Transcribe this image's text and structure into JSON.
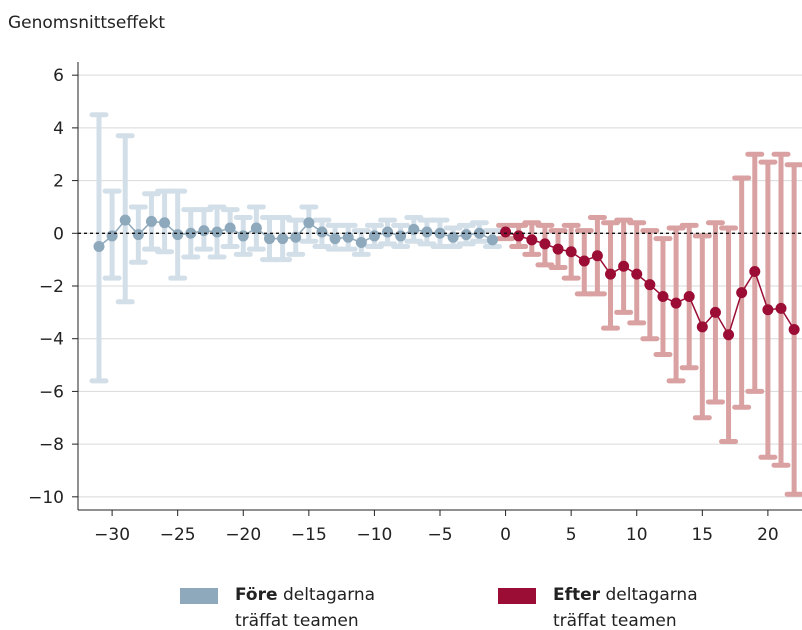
{
  "chart_data": {
    "type": "errorbar",
    "y_label": "Genomsnittseffekt",
    "xlim": [
      -32.6,
      22.6
    ],
    "ylim": [
      -10.5,
      6.5
    ],
    "xticks": [
      {
        "value": -30,
        "label": "−30"
      },
      {
        "value": -25,
        "label": "−25"
      },
      {
        "value": -20,
        "label": "−20"
      },
      {
        "value": -15,
        "label": "−15"
      },
      {
        "value": -10,
        "label": "−10"
      },
      {
        "value": -5,
        "label": "−5"
      },
      0,
      5,
      10,
      15,
      20
    ],
    "yticks": [
      {
        "value": -10,
        "label": "−10"
      },
      {
        "value": -8,
        "label": "−8"
      },
      {
        "value": -6,
        "label": "−6"
      },
      {
        "value": -4,
        "label": "−4"
      },
      {
        "value": -2,
        "label": "−2"
      },
      0,
      2,
      4,
      6
    ],
    "grid": true,
    "zero_line": true,
    "series": [
      {
        "name": "Före",
        "label": "deltagarna träffat teamen",
        "color": "#8fa9bc",
        "bar_color": "#d3dfe8",
        "x": [
          -31,
          -30,
          -29,
          -28,
          -27,
          -26,
          -25,
          -24,
          -23,
          -22,
          -21,
          -20,
          -19,
          -18,
          -17,
          -16,
          -15,
          -14,
          -13,
          -12,
          -11,
          -10,
          -9,
          -8,
          -7,
          -6,
          -5,
          -4,
          -3,
          -2,
          -1
        ],
        "values": [
          -0.5,
          -0.1,
          0.5,
          -0.05,
          0.45,
          0.4,
          -0.05,
          0.0,
          0.1,
          0.05,
          0.2,
          -0.1,
          0.2,
          -0.2,
          -0.2,
          -0.15,
          0.4,
          0.05,
          -0.2,
          -0.15,
          -0.35,
          -0.1,
          0.05,
          -0.1,
          0.15,
          0.05,
          0.0,
          -0.15,
          -0.05,
          0.0,
          -0.25
        ],
        "lower": [
          -5.6,
          -1.7,
          -2.6,
          -1.1,
          -0.6,
          -0.7,
          -1.7,
          -0.9,
          -0.6,
          -0.9,
          -0.5,
          -0.8,
          -0.6,
          -1.0,
          -1.0,
          -0.8,
          -0.3,
          -0.5,
          -0.6,
          -0.6,
          -0.8,
          -0.5,
          -0.4,
          -0.5,
          -0.3,
          -0.4,
          -0.5,
          -0.5,
          -0.4,
          -0.3,
          -0.5
        ],
        "upper": [
          4.5,
          1.6,
          3.7,
          1.0,
          1.5,
          1.6,
          1.6,
          0.9,
          0.9,
          1.0,
          0.9,
          0.6,
          1.0,
          0.6,
          0.6,
          0.5,
          1.0,
          0.5,
          0.3,
          0.3,
          0.1,
          0.3,
          0.5,
          0.3,
          0.6,
          0.5,
          0.5,
          0.2,
          0.3,
          0.4,
          0.1
        ]
      },
      {
        "name": "Efter",
        "label": "deltagarna träffat teamen",
        "color": "#9b0d35",
        "bar_color": "#d9a1a1",
        "x": [
          0,
          1,
          2,
          3,
          4,
          5,
          6,
          7,
          8,
          9,
          10,
          11,
          12,
          13,
          14,
          15,
          16,
          17,
          18,
          19,
          20,
          21,
          22
        ],
        "values": [
          0.05,
          -0.1,
          -0.25,
          -0.4,
          -0.6,
          -0.7,
          -1.05,
          -0.85,
          -1.55,
          -1.25,
          -1.55,
          -1.95,
          -2.4,
          -2.65,
          -2.4,
          -3.55,
          -3.0,
          -3.85,
          -2.25,
          -1.45,
          -2.9,
          -2.85,
          -3.65
        ],
        "lower": [
          -0.2,
          -0.5,
          -0.8,
          -1.2,
          -1.3,
          -1.7,
          -2.3,
          -2.3,
          -3.6,
          -3.0,
          -3.4,
          -4.0,
          -4.6,
          -5.6,
          -5.1,
          -7.0,
          -6.4,
          -7.9,
          -6.6,
          -6.0,
          -8.5,
          -8.8,
          -9.9
        ],
        "upper": [
          0.3,
          0.3,
          0.4,
          0.3,
          0.1,
          0.3,
          0.1,
          0.6,
          0.4,
          0.5,
          0.4,
          0.1,
          -0.2,
          0.2,
          0.3,
          -0.1,
          0.4,
          0.2,
          2.1,
          3.0,
          2.7,
          3.0,
          2.6
        ]
      }
    ]
  }
}
